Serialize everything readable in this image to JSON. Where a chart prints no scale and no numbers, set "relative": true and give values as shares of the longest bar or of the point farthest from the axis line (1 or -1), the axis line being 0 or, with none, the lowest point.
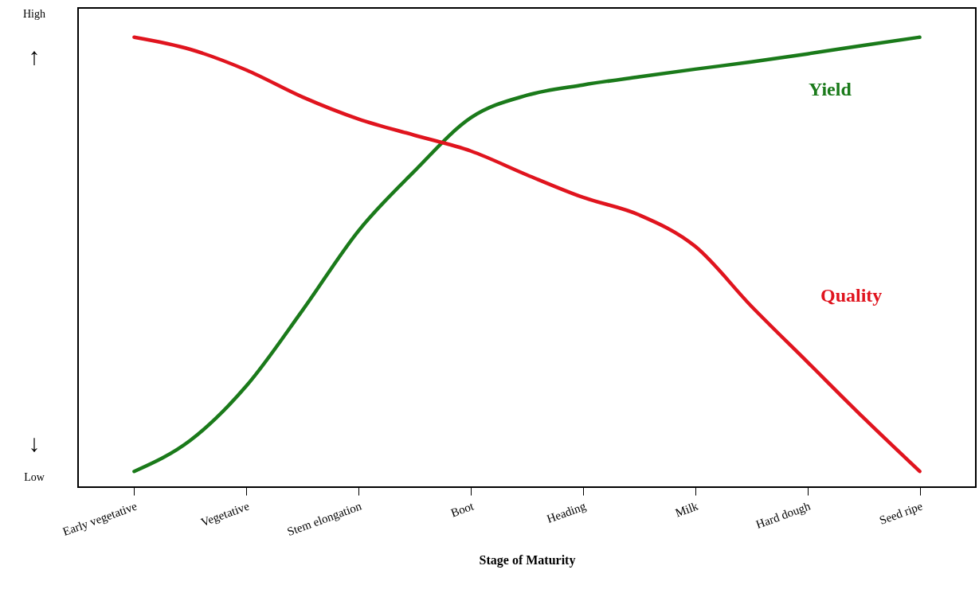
{
  "chart_data": {
    "type": "line",
    "relative": true,
    "xlabel": "Stage of Maturity",
    "categories": [
      "Early vegetative",
      null,
      "Vegetative",
      null,
      "Stem elongation",
      null,
      "Boot",
      null,
      "Heading",
      null,
      "Milk",
      null,
      "Hard dough",
      null,
      "Seed ripe"
    ],
    "series": [
      {
        "name": "Yield",
        "color": "#1a7a1a",
        "values": [
          0.035,
          0.104,
          0.225,
          0.393,
          0.57,
          0.703,
          0.821,
          0.871,
          0.894,
          0.912,
          0.929,
          0.945,
          0.963,
          0.982,
          1.0
        ]
      },
      {
        "name": "Quality",
        "color": "#e0141e",
        "values": [
          1.0,
          0.973,
          0.927,
          0.867,
          0.818,
          0.782,
          0.747,
          0.694,
          0.644,
          0.605,
          0.535,
          0.402,
          0.278,
          0.154,
          0.035
        ]
      }
    ],
    "annotations": [
      "High",
      "↑",
      "↓",
      "Low"
    ],
    "grid": false,
    "legend": false,
    "line_style": "solid"
  }
}
